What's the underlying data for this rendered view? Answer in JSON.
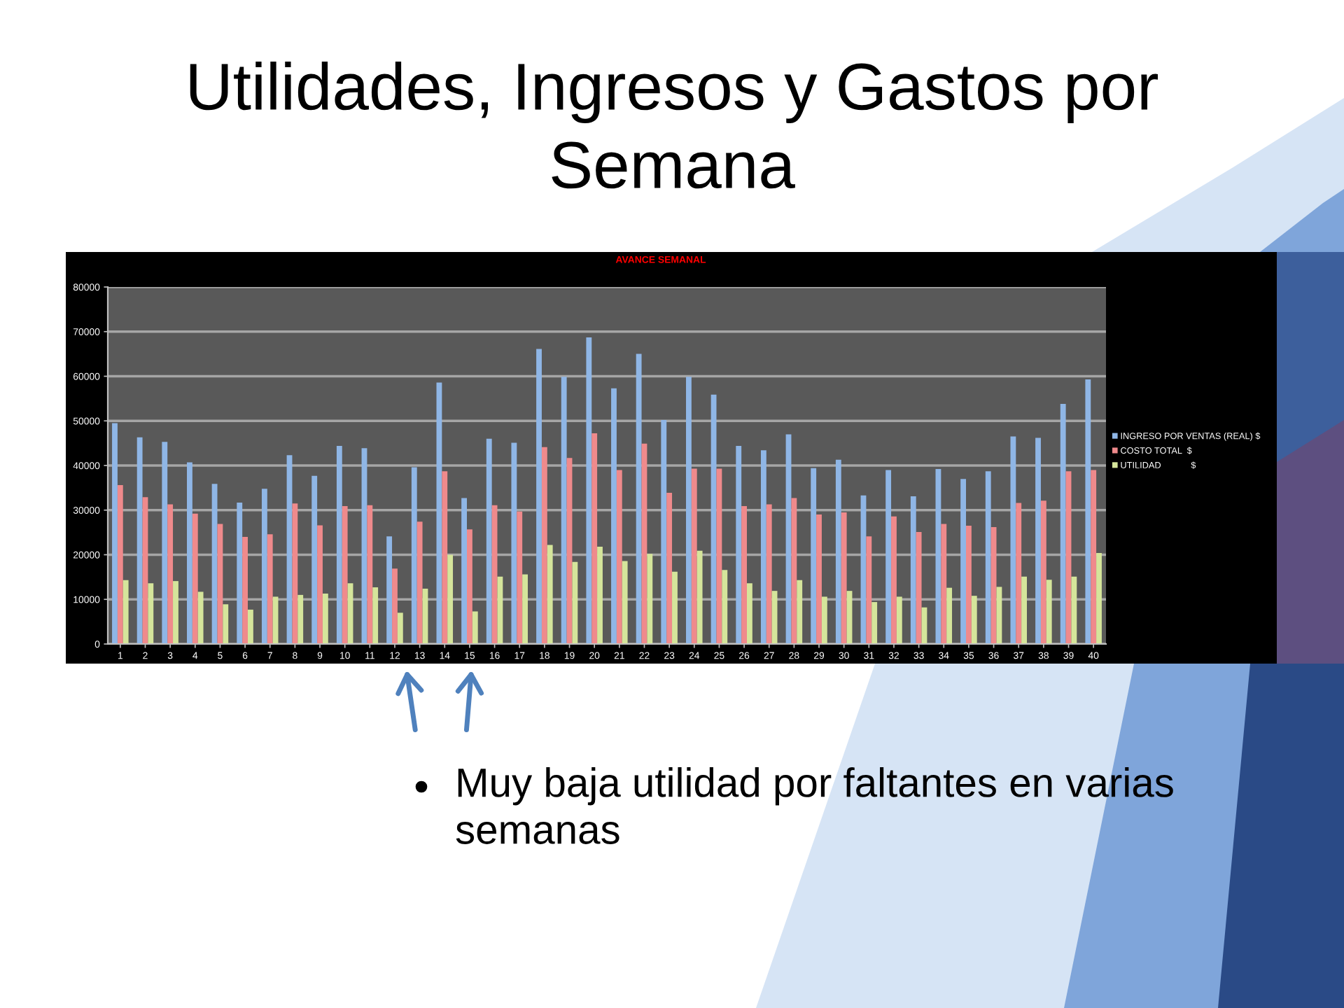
{
  "chart_data": {
    "type": "bar",
    "title": "Utilidades, Ingresos y Gastos por Semana",
    "subtitle": "AVANCE SEMANAL",
    "categories": [
      "1",
      "2",
      "3",
      "4",
      "5",
      "6",
      "7",
      "8",
      "9",
      "10",
      "11",
      "12",
      "13",
      "14",
      "15",
      "16",
      "17",
      "18",
      "19",
      "20",
      "21",
      "22",
      "23",
      "24",
      "25",
      "26",
      "27",
      "28",
      "29",
      "30",
      "31",
      "32",
      "33",
      "34",
      "35",
      "36",
      "37",
      "38",
      "39",
      "40"
    ],
    "series": [
      {
        "name": "INGRESO POR VENTAS (REAL) $",
        "color": "#8fb6e6",
        "values": [
          49500,
          46300,
          45300,
          40700,
          35900,
          31700,
          34800,
          42300,
          37700,
          44400,
          43900,
          24100,
          39600,
          58600,
          32700,
          46000,
          45100,
          66100,
          59900,
          68700,
          57300,
          65000,
          50200,
          59900,
          55900,
          44400,
          43400,
          47000,
          39400,
          41300,
          33300,
          39000,
          33100,
          39200,
          37000,
          38700,
          46500,
          46200,
          53800,
          59300
        ]
      },
      {
        "name": "COSTO TOTAL  $",
        "color": "#ef8a8c",
        "values": [
          35600,
          32900,
          31300,
          29200,
          26900,
          24000,
          24600,
          31500,
          26600,
          30900,
          31100,
          16900,
          27400,
          38700,
          25700,
          31100,
          29700,
          44100,
          41700,
          47200,
          39000,
          44900,
          33900,
          39300,
          39300,
          30900,
          31300,
          32700,
          29000,
          29500,
          24100,
          28600,
          25100,
          26900,
          26500,
          26200,
          31600,
          32100,
          38700,
          39000
        ]
      },
      {
        "name": "UTILIDAD            $",
        "color": "#d5e59b",
        "values": [
          14300,
          13600,
          14100,
          11700,
          8900,
          7700,
          10600,
          11000,
          11300,
          13600,
          12700,
          7000,
          12400,
          20000,
          7300,
          15100,
          15600,
          22200,
          18400,
          21800,
          18600,
          20200,
          16200,
          20900,
          16600,
          13600,
          11900,
          14300,
          10600,
          11900,
          9400,
          10600,
          8200,
          12600,
          10800,
          12800,
          15100,
          14400,
          15100,
          20400
        ]
      }
    ],
    "ylim": [
      0,
      80000
    ],
    "yticks": [
      0,
      10000,
      20000,
      30000,
      40000,
      50000,
      60000,
      70000,
      80000
    ],
    "grid": "y",
    "legend": "right",
    "annotations": [
      "Muy baja utilidad por faltantes en varias semanas"
    ]
  }
}
